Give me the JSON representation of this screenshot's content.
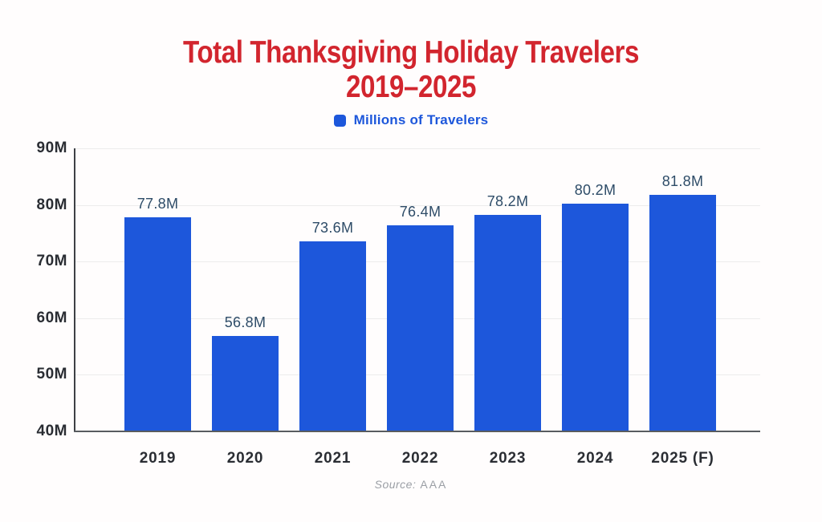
{
  "header": {
    "title_line1": "Total Thanksgiving Holiday Travelers",
    "title_line2": "2019–2025",
    "title_color": "#d2252e"
  },
  "legend": {
    "label": "Millions of Travelers",
    "swatch_color": "#1d57db"
  },
  "chart_data": {
    "type": "bar",
    "title": "Total Thanksgiving Holiday Travelers 2019–2025",
    "categories": [
      "2019",
      "2020",
      "2021",
      "2022",
      "2023",
      "2024",
      "2025 (F)"
    ],
    "values": [
      77.8,
      56.8,
      73.6,
      76.4,
      78.2,
      80.2,
      81.8
    ],
    "bar_labels": [
      "77.8M",
      "56.8M",
      "73.6M",
      "76.4M",
      "78.2M",
      "80.2M",
      "81.8M"
    ],
    "series_name": "Millions of Travelers",
    "unit": "millions of travelers",
    "ylim": [
      40,
      90
    ],
    "yticks": [
      {
        "value": 90,
        "label": "90M"
      },
      {
        "value": 80,
        "label": "80M"
      },
      {
        "value": 70,
        "label": "70M"
      },
      {
        "value": 60,
        "label": "60M"
      },
      {
        "value": 50,
        "label": "50M"
      },
      {
        "value": 40,
        "label": "40M"
      }
    ],
    "grid": true,
    "legend_position": "top-center",
    "xlabel": "",
    "ylabel": "",
    "colors": {
      "bar": "#1d57db",
      "value_label": "#2e4c68",
      "axis_text": "#2a2d33",
      "gridline": "#ececec",
      "y_axis_line": "#3d4045",
      "x_axis_line": "#595c60",
      "background": "#fffdfd"
    }
  },
  "source": {
    "prefix": "Source:",
    "value": "AAA"
  }
}
